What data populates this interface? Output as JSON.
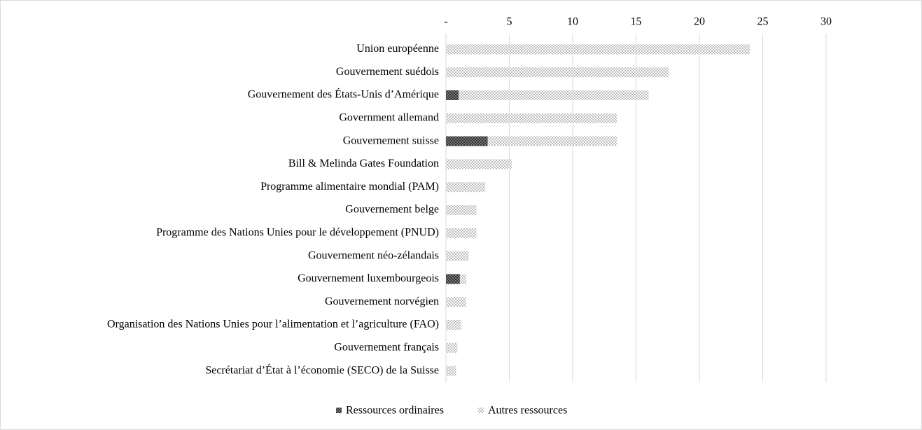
{
  "chart_data": {
    "type": "stacked-barh",
    "categories": [
      "Union européenne",
      "Gouvernement suédois",
      "Gouvernement des États-Unis d’Amérique",
      "Government allemand",
      "Gouvernement suisse",
      "Bill & Melinda Gates Foundation",
      "Programme alimentaire mondial (PAM)",
      "Gouvernement belge",
      "Programme des Nations Unies pour le développement (PNUD)",
      "Gouvernement néo-zélandais",
      "Gouvernement luxembourgeois",
      "Gouvernement norvégien",
      "Organisation des Nations Unies pour l’alimentation et l’agriculture (FAO)",
      "Gouvernement français",
      "Secrétariat d’État à l’économie (SECO) de la Suisse"
    ],
    "series": [
      {
        "name": "Ressources ordinaires",
        "color": "#333333",
        "values": [
          0,
          0,
          1.0,
          0,
          3.3,
          0,
          0,
          0,
          0,
          0,
          1.1,
          0,
          0,
          0,
          0
        ]
      },
      {
        "name": "Autres ressources",
        "color": "#bdbdbd",
        "values": [
          24.0,
          17.6,
          15.0,
          13.5,
          10.2,
          5.2,
          3.1,
          2.4,
          2.4,
          1.8,
          0.5,
          1.6,
          1.2,
          0.9,
          0.8
        ]
      }
    ],
    "xlim": [
      0,
      30
    ],
    "xticks": [
      {
        "value": 0,
        "label": "-"
      },
      5,
      10,
      15,
      20,
      25,
      30
    ],
    "grid": true,
    "legend": "bottom"
  }
}
